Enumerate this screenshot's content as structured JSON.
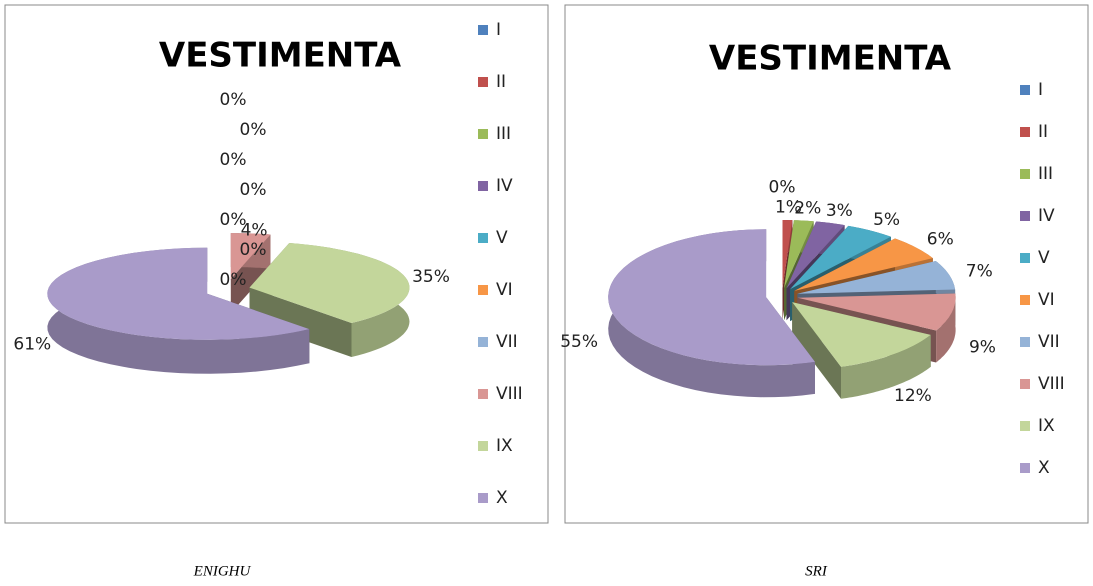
{
  "chart_data": [
    {
      "type": "pie3d",
      "title": "VESTIMENTA",
      "caption": "ENIGHU",
      "categories": [
        "I",
        "II",
        "III",
        "IV",
        "V",
        "VI",
        "VII",
        "VIII",
        "IX",
        "X"
      ],
      "values": [
        0,
        0,
        0,
        0,
        0,
        0,
        0,
        4,
        35,
        61
      ],
      "value_labels": [
        "0%",
        "0%",
        "0%",
        "0%",
        "0%",
        "0%",
        "0%",
        "4%",
        "35%",
        "61%"
      ],
      "colors": [
        "#4F81BD",
        "#C0504D",
        "#9BBB59",
        "#8064A2",
        "#4BACC6",
        "#F79646",
        "#95B3D7",
        "#D99694",
        "#C3D69B",
        "#A99BC9"
      ],
      "legend": "right"
    },
    {
      "type": "pie3d",
      "title": "VESTIMENTA",
      "caption": "SRI",
      "categories": [
        "I",
        "II",
        "III",
        "IV",
        "V",
        "VI",
        "VII",
        "VIII",
        "IX",
        "X"
      ],
      "values": [
        0,
        1,
        2,
        3,
        5,
        6,
        7,
        9,
        12,
        55
      ],
      "value_labels": [
        "0%",
        "1%",
        "2%",
        "3%",
        "5%",
        "6%",
        "7%",
        "9%",
        "12%",
        "55%"
      ],
      "colors": [
        "#4F81BD",
        "#C0504D",
        "#9BBB59",
        "#8064A2",
        "#4BACC6",
        "#F79646",
        "#95B3D7",
        "#D99694",
        "#C3D69B",
        "#A99BC9"
      ],
      "legend": "right"
    }
  ]
}
